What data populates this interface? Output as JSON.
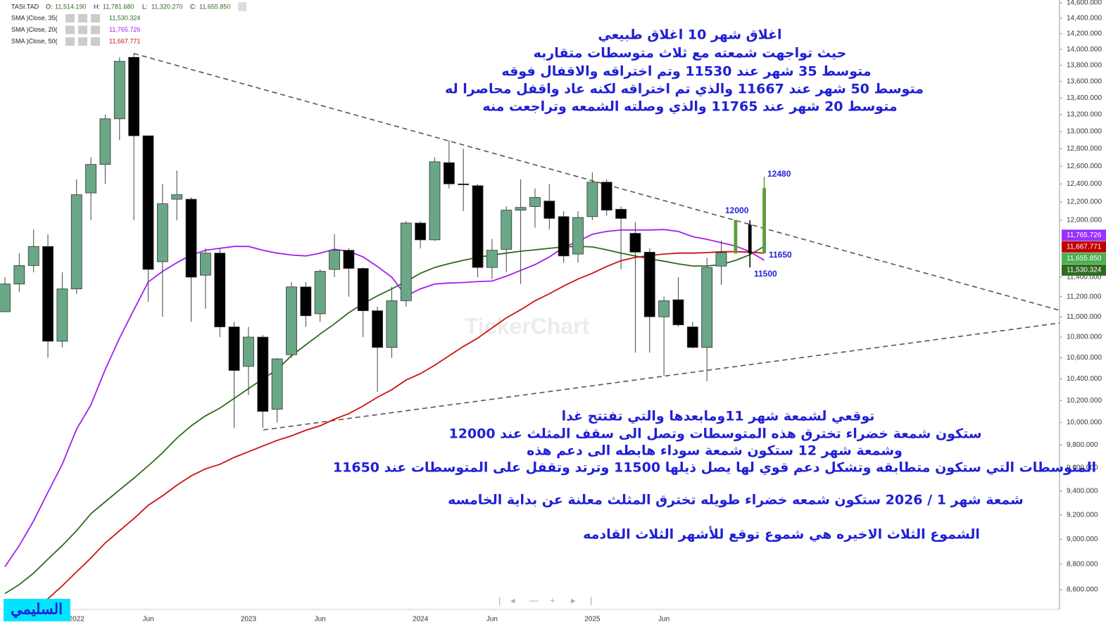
{
  "chart_data": {
    "type": "candlestick",
    "header": {
      "symbol": "TASI.TAD",
      "ohlc": [
        {
          "label": "O:",
          "value": "11,514.190"
        },
        {
          "label": "H:",
          "value": "11,781.680"
        },
        {
          "label": "L:",
          "value": "11,320.270"
        },
        {
          "label": "C:",
          "value": "11,655.850"
        }
      ]
    },
    "categories": [
      null,
      null,
      null,
      null,
      null,
      "2022",
      null,
      null,
      null,
      null,
      "Jun",
      null,
      null,
      null,
      null,
      null,
      null,
      "2023",
      null,
      null,
      null,
      null,
      "Jun",
      null,
      null,
      null,
      null,
      null,
      null,
      "2024",
      null,
      null,
      null,
      null,
      "Jun",
      null,
      null,
      null,
      null,
      null,
      null,
      "2025",
      null,
      null,
      null,
      null,
      "Jun",
      null,
      null,
      null,
      null,
      null,
      null,
      null
    ],
    "open": [
      11050,
      11330,
      11520,
      11720,
      10760,
      11280,
      12300,
      12620,
      13150,
      13900,
      12950,
      11560,
      12230,
      12230,
      11420,
      11650,
      10900,
      10520,
      10800,
      10120,
      10630,
      11300,
      11030,
      11480,
      11680,
      11490,
      11060,
      10700,
      11160,
      11970,
      11790,
      12640,
      12400,
      12380,
      11500,
      11690,
      12110,
      12150,
      12210,
      12040,
      11640,
      12040,
      12420,
      12120,
      11860,
      11660,
      11000,
      11170,
      10900,
      10700,
      11514.19,
      11650,
      11950,
      11650
    ],
    "high": [
      11400,
      11650,
      11900,
      11850,
      11450,
      12450,
      12700,
      13200,
      13900,
      13950,
      12950,
      12400,
      12550,
      12250,
      11700,
      11700,
      10950,
      10900,
      10820,
      10600,
      11350,
      11350,
      11480,
      11850,
      11700,
      11500,
      11100,
      11300,
      11990,
      11990,
      12700,
      12900,
      12800,
      12400,
      11800,
      12150,
      12450,
      12350,
      12400,
      12100,
      12100,
      12530,
      12450,
      12150,
      11980,
      11700,
      11200,
      11400,
      10950,
      11600,
      11781.68,
      12000,
      12000,
      12480
    ],
    "low": [
      11050,
      11250,
      11450,
      10600,
      10700,
      11230,
      12000,
      12400,
      12900,
      12000,
      11150,
      11000,
      12000,
      10950,
      11080,
      10800,
      9950,
      10250,
      9950,
      10000,
      10600,
      10900,
      10950,
      11400,
      11200,
      10800,
      10280,
      10600,
      11100,
      11700,
      11780,
      12350,
      12100,
      11400,
      11380,
      11450,
      11330,
      11920,
      11900,
      11550,
      11550,
      12000,
      12050,
      11480,
      10650,
      10650,
      10430,
      10900,
      10690,
      10380,
      11320.27,
      11650,
      11500,
      11650
    ],
    "close": [
      11330,
      11520,
      11720,
      10760,
      11280,
      12280,
      12620,
      13150,
      13850,
      12950,
      11480,
      12180,
      12280,
      11400,
      11650,
      10900,
      10480,
      10800,
      10100,
      10590,
      11300,
      11010,
      11460,
      11680,
      11490,
      11060,
      10700,
      11160,
      11970,
      11790,
      12650,
      12400,
      12390,
      11500,
      11680,
      12110,
      12140,
      12250,
      12020,
      11620,
      12030,
      12420,
      12110,
      12020,
      11660,
      11000,
      11160,
      10920,
      10700,
      11500,
      11655.85,
      12000,
      11650,
      12350
    ],
    "up_color": "#6aa786",
    "down_color": "#000000",
    "projection_color": "#5a9e3a",
    "series": [
      {
        "name": "SMA  )Close, 35(",
        "color": "#2e6b1f",
        "values": [
          8570,
          8640,
          8730,
          8840,
          8950,
          9070,
          9210,
          9310,
          9410,
          9510,
          9616,
          9730,
          9860,
          9970,
          10060,
          10130,
          10220,
          10310,
          10400,
          10490,
          10620,
          10725,
          10830,
          10930,
          11040,
          11130,
          11210,
          11280,
          11355,
          11440,
          11500,
          11540,
          11575,
          11605,
          11630,
          11650,
          11670,
          11685,
          11700,
          11715,
          11722,
          11715,
          11685,
          11650,
          11620,
          11590,
          11565,
          11537,
          11515,
          11515,
          11530,
          11574,
          11633,
          11722
        ],
        "last_value": 11530.324,
        "last_label": "11,530.324"
      },
      {
        "name": "SMA  )Close, 20(",
        "color": "#a020f0",
        "values": [
          8780,
          8950,
          9150,
          9390,
          9630,
          9940,
          10160,
          10490,
          10790,
          11070,
          11350,
          11460,
          11550,
          11630,
          11680,
          11700,
          11720,
          11720,
          11680,
          11650,
          11630,
          11620,
          11650,
          11690,
          11670,
          11610,
          11510,
          11400,
          11210,
          11280,
          11330,
          11340,
          11345,
          11355,
          11360,
          11410,
          11470,
          11530,
          11610,
          11710,
          11775,
          11850,
          11880,
          11895,
          11895,
          11895,
          11900,
          11880,
          11825,
          11796,
          11760,
          11725,
          11665,
          11575
        ],
        "last_value": 11765.726,
        "last_label": "11,765.726"
      },
      {
        "name": "SMA  )Close, 50(",
        "color": "#cc1111",
        "values": [
          null,
          null,
          8470,
          8530,
          8630,
          8740,
          8850,
          8970,
          9070,
          9170,
          9280,
          9360,
          9450,
          9530,
          9590,
          9630,
          9690,
          9740,
          9790,
          9840,
          9880,
          9930,
          9970,
          10030,
          10080,
          10150,
          10230,
          10300,
          10390,
          10450,
          10530,
          10620,
          10710,
          10790,
          10890,
          10990,
          11070,
          11160,
          11230,
          11310,
          11380,
          11440,
          11510,
          11570,
          11605,
          11625,
          11640,
          11650,
          11650,
          11655,
          11665,
          11665,
          11660,
          11650
        ],
        "last_value": 11667.771,
        "last_label": "11,667.771"
      }
    ],
    "close_badge_color": "#4caf50",
    "log_scale": true,
    "grid": false,
    "ylim": [
      8454,
      14637
    ],
    "yticks": [
      {
        "value": 14600,
        "label": "14,600.000"
      },
      {
        "value": 14400,
        "label": "14,400.000"
      },
      {
        "value": 14200,
        "label": "14,200.000"
      },
      {
        "value": 14000,
        "label": "14,000.000"
      },
      {
        "value": 13800,
        "label": "13,800.000"
      },
      {
        "value": 13600,
        "label": "13,600.000"
      },
      {
        "value": 13400,
        "label": "13,400.000"
      },
      {
        "value": 13200,
        "label": "13,200.000"
      },
      {
        "value": 13000,
        "label": "13,000.000"
      },
      {
        "value": 12800,
        "label": "12,800.000"
      },
      {
        "value": 12600,
        "label": "12,600.000"
      },
      {
        "value": 12400,
        "label": "12,400.000"
      },
      {
        "value": 12200,
        "label": "12,200.000"
      },
      {
        "value": 12000,
        "label": "12,000.000"
      },
      {
        "value": 11400,
        "label": "11,400.000"
      },
      {
        "value": 11200,
        "label": "11,200.000"
      },
      {
        "value": 11000,
        "label": "11,000.000"
      },
      {
        "value": 10800,
        "label": "10,800.000"
      },
      {
        "value": 10600,
        "label": "10,600.000"
      },
      {
        "value": 10400,
        "label": "10,400.000"
      },
      {
        "value": 10200,
        "label": "10,200.000"
      },
      {
        "value": 10000,
        "label": "10,000.000"
      },
      {
        "value": 9800,
        "label": "9,800.000"
      },
      {
        "value": 9600,
        "label": "9,600.000"
      },
      {
        "value": 9400,
        "label": "9,400.000"
      },
      {
        "value": 9200,
        "label": "9,200.000"
      },
      {
        "value": 9000,
        "label": "9,000.000"
      },
      {
        "value": 8800,
        "label": "8,800.000"
      },
      {
        "value": 8600,
        "label": "8,600.000"
      }
    ],
    "annotations": [
      "اغلاق شهر  10  اغلاق طبيعي",
      "حيث تواجهت شمعته مع ثلاث متوسطات متقاربه",
      "متوسط 35 شهر   عند  11530  وتم اختراقه والاقفال فوقه",
      "متوسط 50 شهر عند 11667 والذي تم اختراقه لكنه عاد واقفل محاصرا له",
      "متوسط 20 شهر   عند  11765 والذي وصلته الشمعه وتراجعت منه",
      "توقعي لشمعة شهر 11ومابعدها  والتي تفتتح غدا",
      "ستكون شمعة خضراء تخترق هذه المتوسطات وتصل الى سقف المثلث عند 12000",
      "وشمعة شهر 12 ستكون شمعة سوداء هابطه الى دعم هذه",
      "المتوسطات التي ستكون متطابقه وتشكل دعم قوي لها يصل  ذيلها 11500 وترتد وتقفل على المتوسطات عند 11650",
      "شمعة شهر 1 / 2026 ستكون شمعه خضراء طويله تخترق المثلث معلنة عن بداية الخامسه",
      "الشموع الثلاث الاخيره هي شموع توقع للأشهر الثلاث القادمه"
    ],
    "price_labels": [
      "12480",
      "12000",
      "11650",
      "11500"
    ],
    "watermark": "TickerChart",
    "signature": "السليمي"
  }
}
